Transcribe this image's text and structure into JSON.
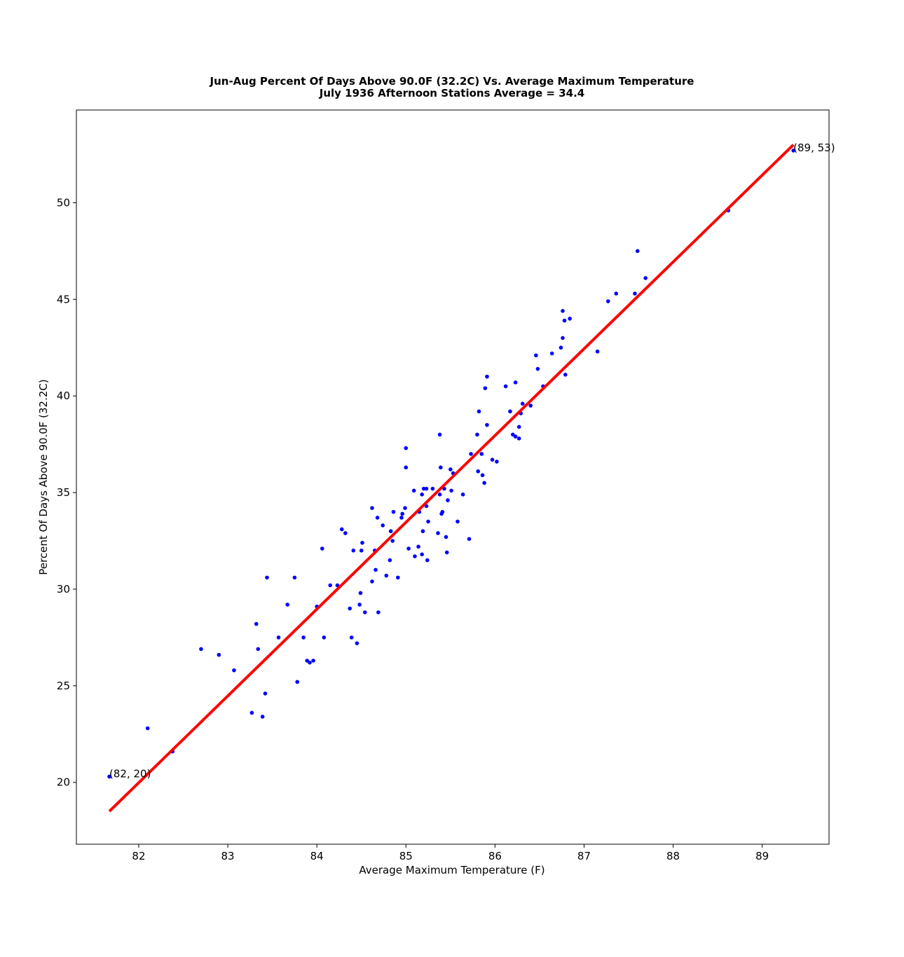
{
  "chart_data": {
    "type": "scatter",
    "title": "Jun-Aug Percent Of Days Above 90.0F (32.2C) Vs. Average Maximum Temperature",
    "subtitle": "July 1936 Afternoon Stations  Average = 34.4",
    "xlabel": "Average Maximum Temperature (F)",
    "ylabel": "Percent Of Days Above 90.0F (32.2C)",
    "xlim": [
      81.3,
      89.75
    ],
    "ylim": [
      16.8,
      54.8
    ],
    "xticks": [
      82,
      83,
      84,
      85,
      86,
      87,
      88,
      89
    ],
    "yticks": [
      20,
      25,
      30,
      35,
      40,
      45,
      50
    ],
    "grid": false,
    "colors": {
      "points": "#0000ff",
      "fit_line": "#ff0000"
    },
    "points": [
      [
        81.67,
        20.3
      ],
      [
        82.1,
        22.8
      ],
      [
        82.38,
        21.6
      ],
      [
        82.7,
        26.9
      ],
      [
        82.9,
        26.6
      ],
      [
        83.07,
        25.8
      ],
      [
        83.27,
        23.6
      ],
      [
        83.32,
        28.2
      ],
      [
        83.34,
        26.9
      ],
      [
        83.39,
        23.4
      ],
      [
        83.42,
        24.6
      ],
      [
        83.44,
        30.6
      ],
      [
        83.57,
        27.5
      ],
      [
        83.67,
        29.2
      ],
      [
        83.75,
        30.6
      ],
      [
        83.78,
        25.2
      ],
      [
        83.85,
        27.5
      ],
      [
        83.89,
        26.3
      ],
      [
        83.92,
        26.2
      ],
      [
        83.96,
        26.3
      ],
      [
        84.0,
        29.1
      ],
      [
        84.06,
        32.1
      ],
      [
        84.08,
        27.5
      ],
      [
        84.15,
        30.2
      ],
      [
        84.23,
        30.2
      ],
      [
        84.28,
        33.1
      ],
      [
        84.32,
        32.9
      ],
      [
        84.37,
        29.0
      ],
      [
        84.39,
        27.5
      ],
      [
        84.41,
        32.0
      ],
      [
        84.45,
        27.2
      ],
      [
        84.48,
        29.2
      ],
      [
        84.49,
        29.8
      ],
      [
        84.5,
        32.0
      ],
      [
        84.51,
        32.4
      ],
      [
        84.54,
        28.8
      ],
      [
        84.62,
        34.2
      ],
      [
        84.62,
        30.4
      ],
      [
        84.65,
        32.0
      ],
      [
        84.66,
        31.0
      ],
      [
        84.68,
        33.7
      ],
      [
        84.69,
        28.8
      ],
      [
        84.74,
        33.3
      ],
      [
        84.78,
        30.7
      ],
      [
        84.82,
        31.5
      ],
      [
        84.83,
        33.0
      ],
      [
        84.85,
        32.5
      ],
      [
        84.86,
        34.0
      ],
      [
        84.91,
        30.6
      ],
      [
        84.95,
        33.7
      ],
      [
        84.96,
        33.9
      ],
      [
        84.99,
        34.2
      ],
      [
        85.0,
        37.3
      ],
      [
        85.0,
        36.3
      ],
      [
        85.03,
        32.1
      ],
      [
        85.09,
        35.1
      ],
      [
        85.1,
        31.7
      ],
      [
        85.14,
        32.2
      ],
      [
        85.15,
        34.0
      ],
      [
        85.18,
        31.8
      ],
      [
        85.18,
        34.9
      ],
      [
        85.19,
        33.0
      ],
      [
        85.2,
        35.2
      ],
      [
        85.23,
        35.2
      ],
      [
        85.23,
        34.3
      ],
      [
        85.24,
        31.5
      ],
      [
        85.25,
        33.5
      ],
      [
        85.3,
        35.2
      ],
      [
        85.36,
        32.9
      ],
      [
        85.38,
        34.9
      ],
      [
        85.38,
        38.0
      ],
      [
        85.39,
        36.3
      ],
      [
        85.4,
        33.9
      ],
      [
        85.41,
        34.0
      ],
      [
        85.43,
        35.2
      ],
      [
        85.45,
        32.7
      ],
      [
        85.46,
        31.9
      ],
      [
        85.47,
        34.6
      ],
      [
        85.5,
        36.2
      ],
      [
        85.51,
        35.1
      ],
      [
        85.53,
        36.0
      ],
      [
        85.58,
        33.5
      ],
      [
        85.64,
        34.9
      ],
      [
        85.71,
        32.6
      ],
      [
        85.73,
        37.0
      ],
      [
        85.8,
        38.0
      ],
      [
        85.81,
        36.1
      ],
      [
        85.82,
        39.2
      ],
      [
        85.85,
        37.0
      ],
      [
        85.86,
        35.9
      ],
      [
        85.88,
        35.5
      ],
      [
        85.89,
        40.4
      ],
      [
        85.91,
        38.5
      ],
      [
        85.91,
        41.0
      ],
      [
        85.97,
        36.7
      ],
      [
        86.02,
        36.6
      ],
      [
        86.12,
        40.5
      ],
      [
        86.17,
        39.2
      ],
      [
        86.2,
        38.0
      ],
      [
        86.23,
        40.7
      ],
      [
        86.23,
        37.9
      ],
      [
        86.27,
        38.4
      ],
      [
        86.27,
        37.8
      ],
      [
        86.29,
        39.1
      ],
      [
        86.31,
        39.6
      ],
      [
        86.4,
        39.5
      ],
      [
        86.46,
        42.1
      ],
      [
        86.48,
        41.4
      ],
      [
        86.54,
        40.5
      ],
      [
        86.64,
        42.2
      ],
      [
        86.74,
        42.5
      ],
      [
        86.76,
        43.0
      ],
      [
        86.76,
        44.4
      ],
      [
        86.78,
        43.9
      ],
      [
        86.79,
        41.1
      ],
      [
        86.84,
        44.0
      ],
      [
        87.15,
        42.3
      ],
      [
        87.27,
        44.9
      ],
      [
        87.36,
        45.3
      ],
      [
        87.57,
        45.3
      ],
      [
        87.6,
        47.5
      ],
      [
        87.69,
        46.1
      ],
      [
        88.62,
        49.6
      ],
      [
        89.35,
        52.7
      ]
    ],
    "fit_line": {
      "x": [
        81.67,
        89.35
      ],
      "y": [
        18.5,
        53.0
      ]
    },
    "annotations": [
      {
        "text": "(82, 20)",
        "x": 81.67,
        "y": 20.3
      },
      {
        "text": "(89, 53)",
        "x": 89.35,
        "y": 52.7
      }
    ]
  }
}
